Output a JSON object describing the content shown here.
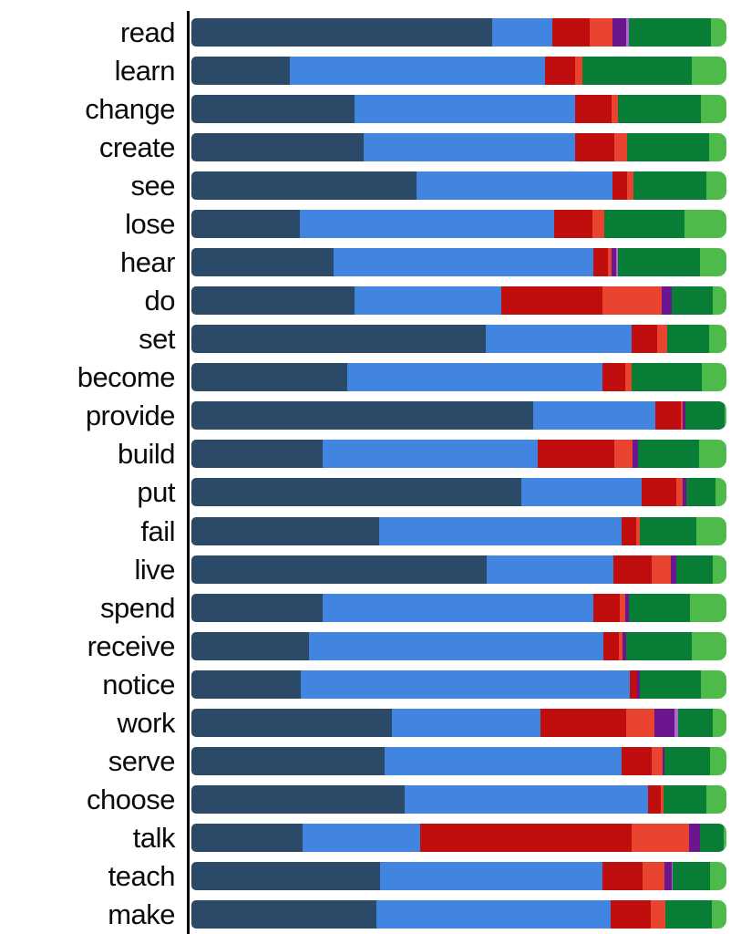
{
  "chart_data": {
    "type": "bar",
    "variant": "horizontal_stacked_100_percent",
    "title": "",
    "xlabel": "",
    "ylabel": "",
    "xlim": [
      0,
      100
    ],
    "unit": "percent_of_bar",
    "grid": false,
    "legend": "none_visible",
    "axis_color": "#000000",
    "series": [
      {
        "name": "dark-navy",
        "color": "#2b4a67"
      },
      {
        "name": "blue",
        "color": "#4285e0"
      },
      {
        "name": "dark-red",
        "color": "#c00d0e"
      },
      {
        "name": "orange-red",
        "color": "#e94430"
      },
      {
        "name": "dark-purple",
        "color": "#6b168f"
      },
      {
        "name": "light-violet",
        "color": "#ab6bc8"
      },
      {
        "name": "dark-green",
        "color": "#087d36"
      },
      {
        "name": "light-green",
        "color": "#4eba4a"
      }
    ],
    "categories": [
      "read",
      "learn",
      "change",
      "create",
      "see",
      "lose",
      "hear",
      "do",
      "set",
      "become",
      "provide",
      "build",
      "put",
      "fail",
      "live",
      "spend",
      "receive",
      "notice",
      "work",
      "serve",
      "choose",
      "talk",
      "teach",
      "make"
    ],
    "rows": [
      {
        "label": "read",
        "values": [
          56.3,
          11.1,
          7.0,
          4.3,
          2.6,
          0.5,
          15.3,
          2.9
        ]
      },
      {
        "label": "learn",
        "values": [
          18.4,
          47.7,
          5.7,
          1.3,
          0,
          0,
          20.5,
          6.4
        ]
      },
      {
        "label": "change",
        "values": [
          30.5,
          41.3,
          6.8,
          1.1,
          0,
          0,
          15.5,
          4.8
        ]
      },
      {
        "label": "create",
        "values": [
          32.2,
          39.6,
          7.2,
          2.4,
          0,
          0,
          15.3,
          3.3
        ]
      },
      {
        "label": "see",
        "values": [
          42.0,
          36.7,
          2.8,
          1.1,
          0,
          0,
          13.7,
          3.7
        ]
      },
      {
        "label": "lose",
        "values": [
          20.3,
          47.5,
          7.2,
          2.2,
          0,
          0,
          15.0,
          7.8
        ]
      },
      {
        "label": "hear",
        "values": [
          26.5,
          48.6,
          2.7,
          0.7,
          0.9,
          0.3,
          15.3,
          5.0
        ]
      },
      {
        "label": "do",
        "values": [
          30.5,
          27.4,
          19.0,
          11.0,
          1.8,
          0,
          7.7,
          2.6
        ]
      },
      {
        "label": "set",
        "values": [
          55.0,
          27.2,
          4.9,
          1.8,
          0,
          0,
          7.9,
          3.2
        ]
      },
      {
        "label": "become",
        "values": [
          29.2,
          47.7,
          4.2,
          1.2,
          0,
          0,
          13.1,
          4.6
        ]
      },
      {
        "label": "provide",
        "values": [
          63.8,
          22.9,
          4.8,
          0.3,
          0.5,
          0,
          7.3,
          0.4
        ]
      },
      {
        "label": "build",
        "values": [
          24.6,
          40.2,
          14.3,
          3.4,
          0.9,
          0,
          11.5,
          5.1
        ]
      },
      {
        "label": "put",
        "values": [
          61.6,
          22.5,
          6.6,
          1.1,
          0.7,
          0,
          5.5,
          2.0
        ]
      },
      {
        "label": "fail",
        "values": [
          35.1,
          45.3,
          2.7,
          0.7,
          0,
          0,
          10.6,
          5.6
        ]
      },
      {
        "label": "live",
        "values": [
          55.2,
          23.7,
          7.2,
          3.5,
          1.1,
          0,
          6.8,
          2.5
        ]
      },
      {
        "label": "spend",
        "values": [
          24.6,
          50.5,
          4.9,
          1.1,
          0.6,
          0,
          11.5,
          6.8
        ]
      },
      {
        "label": "receive",
        "values": [
          21.9,
          55.1,
          2.9,
          0.6,
          0.7,
          0,
          12.4,
          6.4
        ]
      },
      {
        "label": "notice",
        "values": [
          20.5,
          61.4,
          1.4,
          0,
          0.5,
          0,
          11.5,
          4.7
        ]
      },
      {
        "label": "work",
        "values": [
          37.5,
          27.8,
          15.9,
          5.3,
          3.8,
          0.7,
          6.5,
          2.5
        ]
      },
      {
        "label": "serve",
        "values": [
          36.2,
          44.2,
          5.6,
          2.0,
          0.4,
          0,
          8.6,
          3.0
        ]
      },
      {
        "label": "choose",
        "values": [
          39.8,
          45.5,
          2.5,
          0.4,
          0,
          0,
          8.1,
          3.7
        ]
      },
      {
        "label": "talk",
        "values": [
          20.8,
          21.9,
          39.5,
          10.9,
          2.0,
          0,
          4.4,
          0.5
        ]
      },
      {
        "label": "teach",
        "values": [
          35.3,
          41.5,
          7.6,
          4.1,
          1.2,
          0.3,
          7.0,
          3.0
        ]
      },
      {
        "label": "make",
        "values": [
          34.5,
          43.9,
          7.5,
          2.7,
          0,
          0,
          8.6,
          2.8
        ]
      }
    ]
  }
}
